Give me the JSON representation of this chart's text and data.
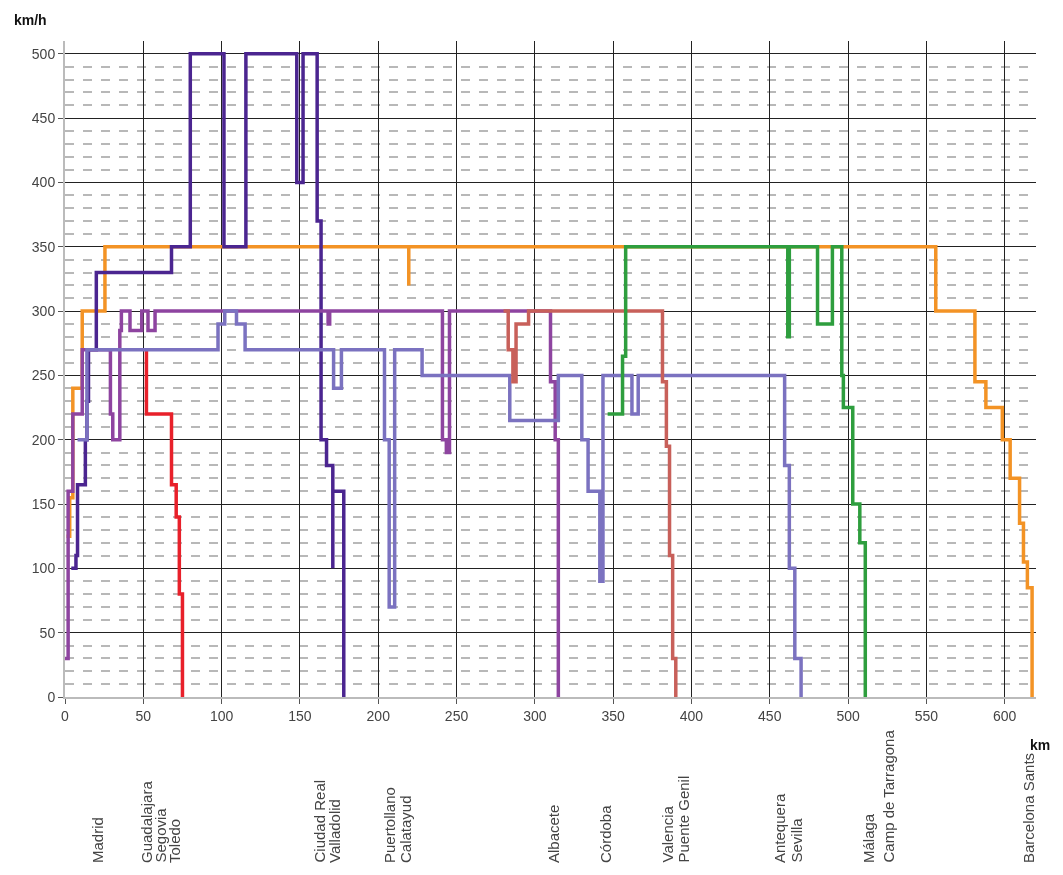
{
  "chart_data": {
    "type": "step",
    "xlabel": "km",
    "ylabel": "km/h",
    "xlim": [
      0,
      620
    ],
    "xticks": [
      0,
      50,
      100,
      150,
      200,
      250,
      300,
      350,
      400,
      450,
      500,
      550,
      600
    ],
    "ylim": [
      0,
      510
    ],
    "yticks": [
      0,
      {
        "value": 10,
        "label": null
      },
      {
        "value": 20,
        "label": null
      },
      {
        "value": 30,
        "label": null
      },
      {
        "value": 40,
        "label": null
      },
      50,
      {
        "value": 60,
        "label": null
      },
      {
        "value": 70,
        "label": null
      },
      {
        "value": 80,
        "label": null
      },
      {
        "value": 90,
        "label": null
      },
      100,
      {
        "value": 110,
        "label": null
      },
      {
        "value": 120,
        "label": null
      },
      {
        "value": 130,
        "label": null
      },
      {
        "value": 140,
        "label": null
      },
      150,
      {
        "value": 160,
        "label": null
      },
      {
        "value": 170,
        "label": null
      },
      {
        "value": 180,
        "label": null
      },
      {
        "value": 190,
        "label": null
      },
      200,
      {
        "value": 210,
        "label": null
      },
      {
        "value": 220,
        "label": null
      },
      {
        "value": 230,
        "label": null
      },
      {
        "value": 240,
        "label": null
      },
      250,
      {
        "value": 260,
        "label": null
      },
      {
        "value": 270,
        "label": null
      },
      {
        "value": 280,
        "label": null
      },
      {
        "value": 290,
        "label": null
      },
      300,
      {
        "value": 310,
        "label": null
      },
      {
        "value": 320,
        "label": null
      },
      {
        "value": 330,
        "label": null
      },
      {
        "value": 340,
        "label": null
      },
      350,
      {
        "value": 360,
        "label": null
      },
      {
        "value": 370,
        "label": null
      },
      {
        "value": 380,
        "label": null
      },
      {
        "value": 390,
        "label": null
      },
      400,
      {
        "value": 410,
        "label": null
      },
      {
        "value": 420,
        "label": null
      },
      {
        "value": 430,
        "label": null
      },
      {
        "value": 440,
        "label": null
      },
      450,
      {
        "value": 460,
        "label": null
      },
      {
        "value": 470,
        "label": null
      },
      {
        "value": 480,
        "label": null
      },
      {
        "value": 490,
        "label": null
      },
      500
    ],
    "grid": true,
    "marker": "none",
    "line_style": "solid",
    "series": [
      {
        "color": "#f39325",
        "x": [
          1,
          3,
          5,
          11,
          25.5,
          219.5,
          219.5,
          556,
          581,
          588,
          598.5,
          603.5,
          609.5,
          612,
          614.5,
          617.5
        ],
        "values": [
          125,
          155,
          240,
          300,
          350,
          320,
          350,
          300,
          245,
          225,
          200,
          170,
          135,
          105,
          85,
          0
        ]
      },
      {
        "color": "#e8202a",
        "x": [
          52,
          52,
          68,
          71,
          73,
          75
        ],
        "values": [
          270,
          220,
          165,
          140,
          80,
          0
        ]
      },
      {
        "color": "#4b2590",
        "x": [
          4,
          7,
          8,
          13,
          14,
          15,
          20,
          68,
          80,
          101.5,
          115.5,
          148,
          152,
          161,
          163.5,
          167,
          171,
          171,
          178
        ],
        "values": [
          100,
          110,
          165,
          200,
          230,
          270,
          330,
          350,
          500,
          350,
          500,
          400,
          500,
          370,
          200,
          180,
          100,
          160,
          0
        ]
      },
      {
        "color": "#8e44a0",
        "x": [
          0,
          2,
          5,
          11,
          29,
          30.5,
          35,
          36,
          41.5,
          49,
          53,
          57.5,
          168,
          169,
          241,
          243.5,
          245.5,
          310,
          313,
          315
        ],
        "values": [
          30,
          160,
          220,
          270,
          220,
          200,
          285,
          300,
          285,
          300,
          285,
          300,
          290,
          300,
          200,
          190,
          300,
          245,
          200,
          0
        ]
      },
      {
        "color": "#7b72c0",
        "x": [
          8,
          14,
          97.7,
          102,
          109.5,
          115,
          167,
          171.5,
          176.5,
          204,
          207,
          210.5,
          228,
          284,
          315,
          330,
          334,
          341.5,
          343.5,
          362,
          366,
          459.5,
          462.5,
          466,
          470
        ],
        "values": [
          200,
          270,
          290,
          300,
          290,
          270,
          270,
          240,
          270,
          200,
          70,
          270,
          250,
          215,
          250,
          200,
          160,
          90,
          250,
          220,
          250,
          180,
          100,
          30,
          0
        ]
      },
      {
        "color": "#c8605a",
        "x": [
          280,
          283,
          286,
          288,
          296,
          381.5,
          384,
          386,
          388,
          390
        ],
        "values": [
          300,
          270,
          245,
          290,
          300,
          245,
          195,
          110,
          30,
          0
        ]
      },
      {
        "color": "#2e9e3e",
        "x": [
          346.5,
          356,
          358,
          461.5,
          462.5,
          480.5,
          490,
          496,
          497,
          503,
          507.5,
          511
        ],
        "values": [
          220,
          265,
          350,
          280,
          350,
          290,
          350,
          250,
          225,
          150,
          120,
          0
        ]
      }
    ],
    "annotations": [
      "Madrid",
      "Guadalajara",
      "Segovia",
      "Toledo",
      "Ciudad Real",
      "Valladolid",
      "Puertollano",
      "Calatayud",
      "Albacete",
      "Córdoba",
      "Valencia",
      "Puente Genil",
      "Antequera",
      "Sevilla",
      "Málaga",
      "Camp de Tarragona",
      "Barcelona Sants"
    ]
  }
}
